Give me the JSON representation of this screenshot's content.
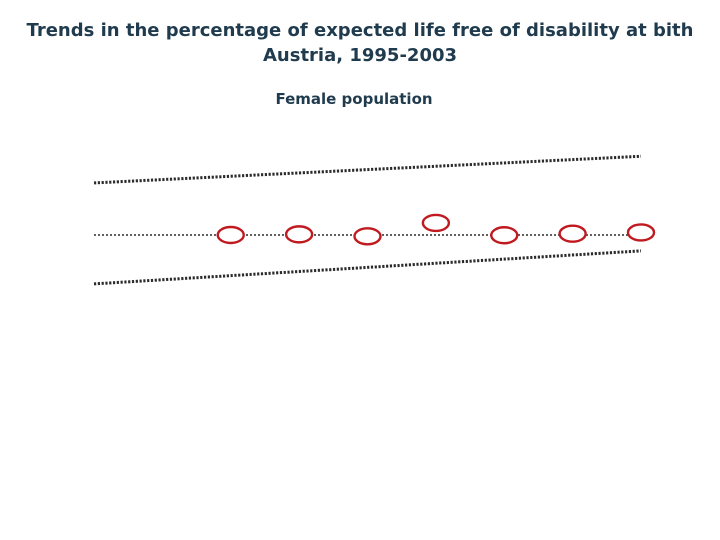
{
  "title_line1": "Trends in the percentage of expected life free of disability at bith",
  "title_line2": "Austria, 1995-2003",
  "subtitle": "Female population",
  "chart_data": {
    "type": "scatter",
    "title": "Trends in the percentage of expected life free of disability at bith Austria, 1995-2003",
    "subtitle": "Female population",
    "x": [
      1997,
      1998,
      1999,
      2000,
      2001,
      2002,
      2003
    ],
    "y": [
      0.0,
      0.05,
      -0.1,
      0.95,
      -0.02,
      0.1,
      0.2
    ],
    "reference_lines": [
      {
        "kind": "trend-upper",
        "x": [
          1995,
          2003
        ],
        "y": [
          4.1,
          6.2
        ]
      },
      {
        "kind": "baseline",
        "x": [
          1995,
          2003
        ],
        "y": [
          0,
          0
        ]
      },
      {
        "kind": "trend-lower",
        "x": [
          1995,
          2003
        ],
        "y": [
          -3.85,
          -1.25
        ]
      }
    ],
    "xlim": [
      1995,
      2003
    ],
    "ylim": [
      -10,
      10
    ],
    "grid": false,
    "colors": {
      "points": "#c0191f",
      "lines": "#2b2b2b",
      "text": "#1f3b4d"
    }
  }
}
